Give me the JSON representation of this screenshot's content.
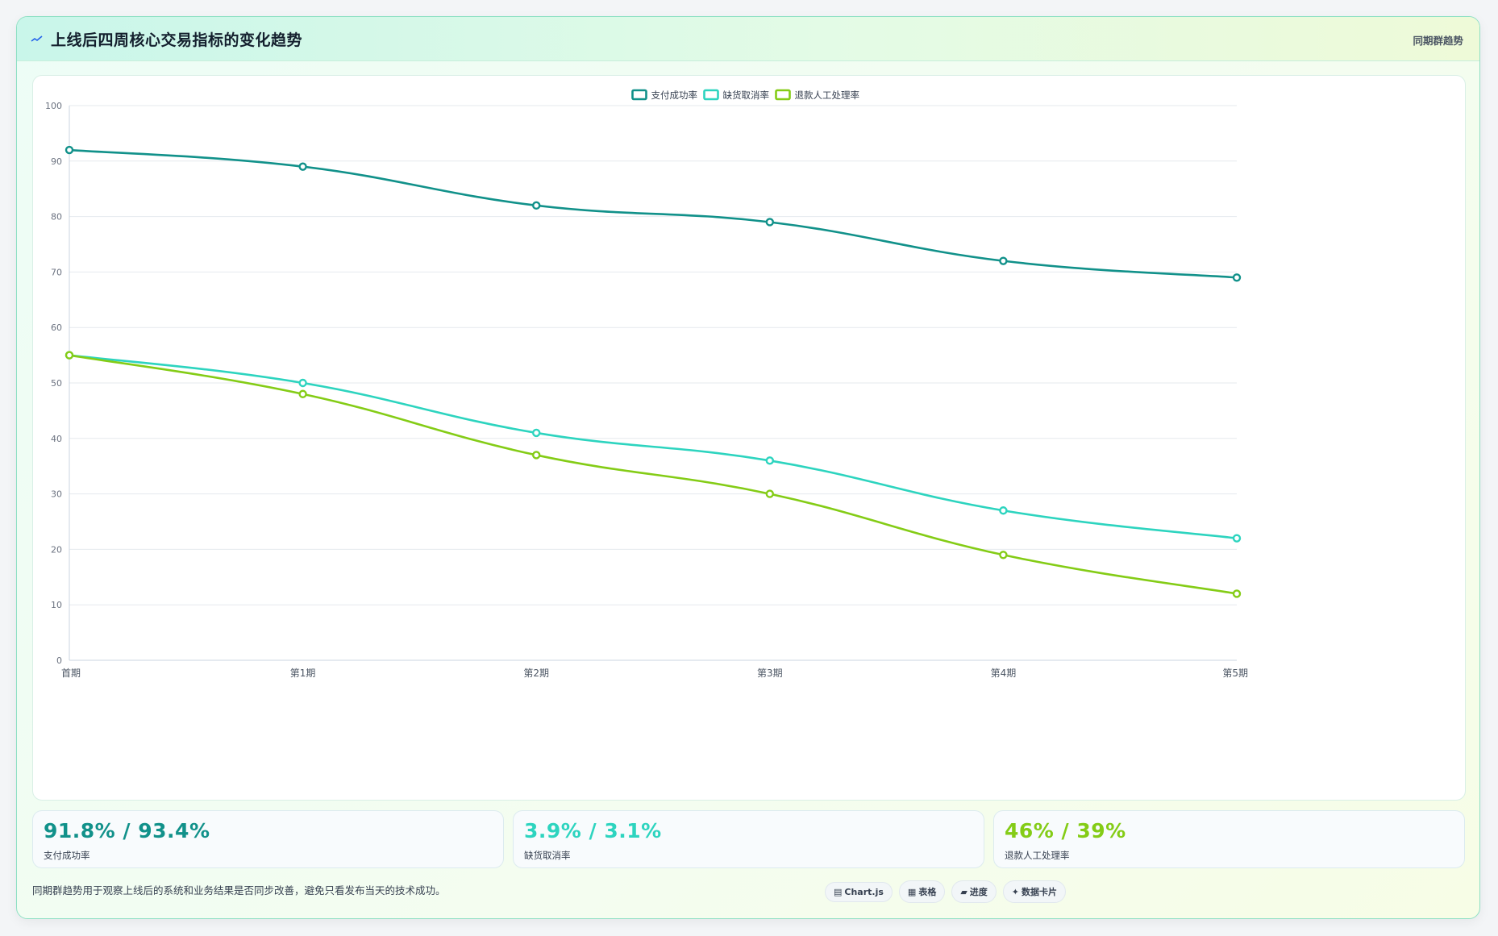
{
  "header": {
    "title": "上线后四周核心交易指标的变化趋势",
    "tag": "同期群趋势"
  },
  "chart_data": {
    "type": "line",
    "categories": [
      "首期",
      "第1期",
      "第2期",
      "第3期",
      "第4期",
      "第5期"
    ],
    "series": [
      {
        "name": "支付成功率",
        "color": "#11918a",
        "values": [
          92,
          89,
          82,
          79,
          72,
          69
        ]
      },
      {
        "name": "缺货取消率",
        "color": "#2dd4bf",
        "values": [
          55,
          50,
          41,
          36,
          27,
          22
        ]
      },
      {
        "name": "退款人工处理率",
        "color": "#84cc16",
        "values": [
          55,
          48,
          37,
          30,
          19,
          12
        ]
      }
    ],
    "ylim": [
      0,
      100
    ],
    "yticks": [
      0,
      10,
      20,
      30,
      40,
      50,
      60,
      70,
      80,
      90,
      100
    ],
    "grid": true,
    "legend": "top-center"
  },
  "kpis": [
    {
      "value": "91.8% / 93.4%",
      "label": "支付成功率",
      "color": "#11918a"
    },
    {
      "value": "3.9% / 3.1%",
      "label": "缺货取消率",
      "color": "#2dd4bf"
    },
    {
      "value": "46% / 39%",
      "label": "退款人工处理率",
      "color": "#84cc16"
    }
  ],
  "footer": {
    "note": "同期群趋势用于观察上线后的系统和业务结果是否同步改善，避免只看发布当天的技术成功。",
    "pills": [
      {
        "icon": "▤",
        "label": "Chart.js"
      },
      {
        "icon": "▦",
        "label": "表格"
      },
      {
        "icon": "▰",
        "label": "进度"
      },
      {
        "icon": "✦",
        "label": "数据卡片"
      }
    ]
  }
}
